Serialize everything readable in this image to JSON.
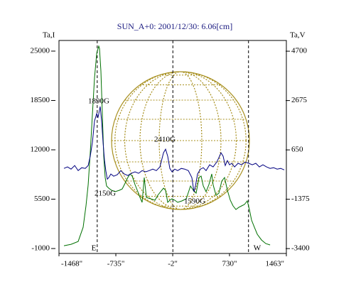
{
  "chart_data": {
    "type": "line",
    "title": "SUN_A+0: 2001/12/30: 6.06[cm]",
    "y_label": "Ta,I",
    "y2_label": "Ta,V",
    "xlim": [
      -1468,
      1463
    ],
    "xticks": [
      {
        "value": -1468,
        "label": "-1468\""
      },
      {
        "value": -735,
        "label": "-735\""
      },
      {
        "value": -2,
        "label": "-2\""
      },
      {
        "value": 730,
        "label": "730\""
      },
      {
        "value": 1463,
        "label": "1463\""
      }
    ],
    "ylim": [
      -1650,
      26400
    ],
    "yticks": [
      25000,
      18500,
      12000,
      5500,
      -1000
    ],
    "y2lim": [
      -3600,
      5140
    ],
    "y2ticks": [
      4700,
      2675,
      650,
      -1375,
      -3400
    ],
    "vlines": [
      -975,
      0,
      975
    ],
    "limb_labels": [
      "E",
      "W"
    ],
    "annotations": [
      "1890G",
      "2410G",
      "2150G",
      "1590G"
    ],
    "series": [
      {
        "name": "Ta,I",
        "color": "#007000",
        "x": [
          -1404,
          -1312,
          -1221,
          -1157,
          -1120,
          -1092,
          -1065,
          -1037,
          -1010,
          -982,
          -955,
          -946,
          -928,
          -909,
          -891,
          -873,
          -854,
          -827,
          -790,
          -744,
          -689,
          -653,
          -616,
          -580,
          -552,
          -525,
          -488,
          -451,
          -424,
          -396,
          -369,
          -341,
          -286,
          -231,
          -195,
          -158,
          -121,
          -94,
          -67,
          -39,
          -12,
          25,
          62,
          117,
          172,
          227,
          263,
          300,
          337,
          364,
          392,
          428,
          465,
          501,
          519,
          556,
          593,
          630,
          666,
          703,
          740,
          776,
          813,
          849,
          886,
          923,
          959,
          987,
          1014,
          1051,
          1088,
          1143,
          1198,
          1253
        ],
        "values": [
          -630,
          -440,
          -70,
          1800,
          4610,
          7420,
          11630,
          16770,
          21450,
          24720,
          25650,
          25370,
          22380,
          16770,
          11160,
          8350,
          7230,
          6950,
          6670,
          6480,
          6670,
          6850,
          7600,
          8350,
          8820,
          8540,
          7420,
          6480,
          5730,
          5080,
          8350,
          5730,
          5550,
          5360,
          6010,
          6480,
          6950,
          6670,
          5080,
          5360,
          5550,
          5360,
          5080,
          5270,
          5550,
          7230,
          6670,
          6290,
          8350,
          8540,
          7230,
          6480,
          7420,
          8820,
          7420,
          6010,
          6290,
          7880,
          8350,
          6670,
          5360,
          4610,
          4140,
          4420,
          4610,
          4800,
          5270,
          4140,
          2740,
          1800,
          870,
          120,
          -350,
          -530
        ]
      },
      {
        "name": "Ta,V",
        "color": "#000080",
        "axis": "y2",
        "x": [
          -1404,
          -1358,
          -1312,
          -1266,
          -1221,
          -1175,
          -1129,
          -1092,
          -1065,
          -1037,
          -1010,
          -982,
          -964,
          -946,
          -937,
          -918,
          -900,
          -882,
          -864,
          -845,
          -827,
          -799,
          -763,
          -717,
          -671,
          -625,
          -580,
          -534,
          -488,
          -442,
          -396,
          -351,
          -305,
          -259,
          -213,
          -167,
          -121,
          -94,
          -67,
          -39,
          -12,
          25,
          62,
          108,
          153,
          199,
          245,
          272,
          291,
          318,
          355,
          392,
          428,
          474,
          519,
          565,
          593,
          620,
          648,
          675,
          703,
          730,
          758,
          795,
          840,
          886,
          932,
          978,
          1024,
          1069,
          1115,
          1161,
          1207,
          1253,
          1298,
          1344,
          1390,
          1436
        ],
        "values": [
          -110,
          -50,
          -140,
          10,
          -200,
          -80,
          -110,
          10,
          390,
          970,
          1840,
          2140,
          1990,
          2280,
          2430,
          1840,
          970,
          240,
          -200,
          -550,
          -490,
          -340,
          -430,
          -370,
          -200,
          -340,
          -400,
          -310,
          -250,
          -310,
          -200,
          -250,
          -200,
          -140,
          -200,
          -50,
          530,
          680,
          390,
          -110,
          -250,
          -140,
          -200,
          -110,
          -140,
          -200,
          -490,
          -1070,
          -840,
          -340,
          -140,
          -80,
          -200,
          40,
          -50,
          150,
          330,
          530,
          390,
          10,
          210,
          40,
          100,
          -50,
          100,
          40,
          150,
          100,
          40,
          100,
          -50,
          40,
          -50,
          -110,
          -80,
          -140,
          -110,
          -170
        ]
      }
    ]
  }
}
